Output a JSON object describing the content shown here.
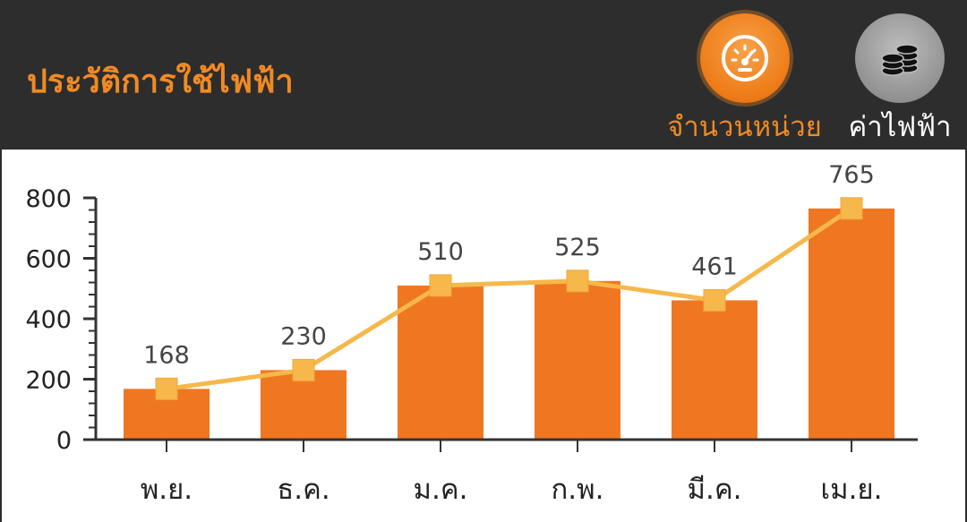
{
  "header": {
    "title": "ประวัติการใช้ไฟฟ้า",
    "units_button": {
      "label": "จำนวนหน่วย",
      "icon": "speedometer-icon"
    },
    "cost_button": {
      "label": "ค่าไฟฟ้า",
      "icon": "coins-icon"
    }
  },
  "colors": {
    "header_bg": "#2d2d2d",
    "accent": "#f08a24",
    "bar": "#f07722",
    "line": "#f6b84a",
    "marker": "#f6b84a"
  },
  "chart_data": {
    "type": "bar",
    "categories": [
      "พ.ย.",
      "ธ.ค.",
      "ม.ค.",
      "ก.พ.",
      "มี.ค.",
      "เม.ย."
    ],
    "series": [
      {
        "values": [
          168,
          230,
          510,
          525,
          461,
          765
        ]
      }
    ],
    "data_labels": [
      "168",
      "230",
      "510",
      "525",
      "461",
      "765"
    ],
    "overlay": "line-with-square-markers",
    "y_ticks": [
      0,
      200,
      400,
      600,
      800
    ],
    "ylim": [
      0,
      800
    ],
    "grid": false,
    "legend": "none"
  }
}
